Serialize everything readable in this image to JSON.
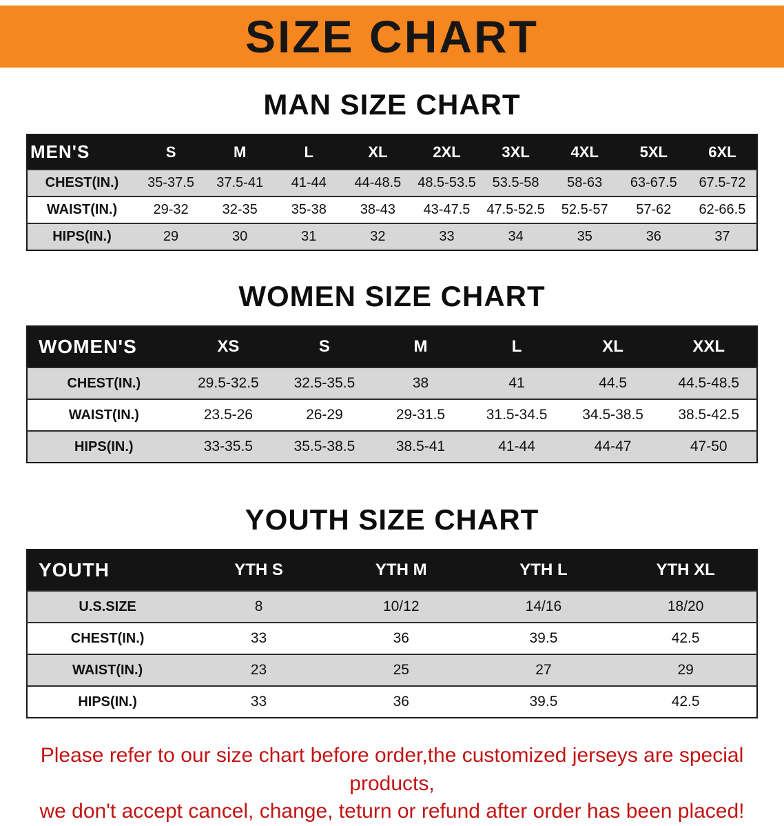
{
  "banner": {
    "title": "SIZE CHART",
    "bg_color": "#F6861F"
  },
  "sections": {
    "men": {
      "heading": "MAN SIZE CHART",
      "table": {
        "header": [
          "MEN'S",
          "S",
          "M",
          "L",
          "XL",
          "2XL",
          "3XL",
          "4XL",
          "5XL",
          "6XL"
        ],
        "rows": [
          [
            "CHEST(IN.)",
            "35-37.5",
            "37.5-41",
            "41-44",
            "44-48.5",
            "48.5-53.5",
            "53.5-58",
            "58-63",
            "63-67.5",
            "67.5-72"
          ],
          [
            "WAIST(IN.)",
            "29-32",
            "32-35",
            "35-38",
            "38-43",
            "43-47.5",
            "47.5-52.5",
            "52.5-57",
            "57-62",
            "62-66.5"
          ],
          [
            "HIPS(IN.)",
            "29",
            "30",
            "31",
            "32",
            "33",
            "34",
            "35",
            "36",
            "37"
          ]
        ]
      }
    },
    "women": {
      "heading": "WOMEN SIZE CHART",
      "table": {
        "header": [
          "WOMEN'S",
          "XS",
          "S",
          "M",
          "L",
          "XL",
          "XXL"
        ],
        "rows": [
          [
            "CHEST(IN.)",
            "29.5-32.5",
            "32.5-35.5",
            "38",
            "41",
            "44.5",
            "44.5-48.5"
          ],
          [
            "WAIST(IN.)",
            "23.5-26",
            "26-29",
            "29-31.5",
            "31.5-34.5",
            "34.5-38.5",
            "38.5-42.5"
          ],
          [
            "HIPS(IN.)",
            "33-35.5",
            "35.5-38.5",
            "38.5-41",
            "41-44",
            "44-47",
            "47-50"
          ]
        ]
      }
    },
    "youth": {
      "heading": "YOUTH SIZE CHART",
      "table": {
        "header": [
          "YOUTH",
          "YTH S",
          "YTH M",
          "YTH L",
          "YTH XL"
        ],
        "rows": [
          [
            "U.S.SIZE",
            "8",
            "10/12",
            "14/16",
            "18/20"
          ],
          [
            "CHEST(IN.)",
            "33",
            "36",
            "39.5",
            "42.5"
          ],
          [
            "WAIST(IN.)",
            "23",
            "25",
            "27",
            "29"
          ],
          [
            "HIPS(IN.)",
            "33",
            "36",
            "39.5",
            "42.5"
          ]
        ]
      }
    }
  },
  "footnote": {
    "color": "#C31414",
    "lines": [
      "Please refer to our size chart before order,the customized jerseys are special products,",
      "we don't accept cancel, change, teturn or refund after order has been placed!"
    ]
  }
}
